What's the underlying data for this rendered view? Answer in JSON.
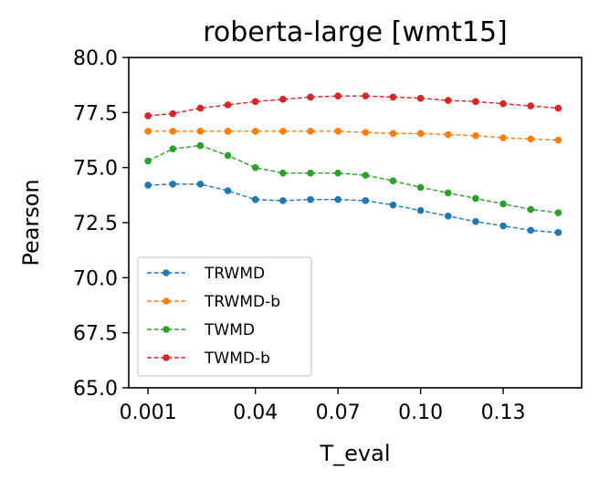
{
  "chart_data": {
    "type": "line",
    "title": "roberta-large [wmt15]",
    "xlabel": "T_eval",
    "ylabel": "Pearson",
    "xlim": [
      -0.006,
      0.1585
    ],
    "ylim": [
      65.0,
      80.0
    ],
    "xticks": [
      0.001,
      0.04,
      0.07,
      0.1,
      0.13
    ],
    "xtick_labels": [
      "0.001",
      "0.04",
      "0.07",
      "0.10",
      "0.13"
    ],
    "yticks": [
      65.0,
      67.5,
      70.0,
      72.5,
      75.0,
      77.5,
      80.0
    ],
    "ytick_labels": [
      "65.0",
      "67.5",
      "70.0",
      "72.5",
      "75.0",
      "77.5",
      "80.0"
    ],
    "grid": false,
    "legend_position": "lower-left",
    "x": [
      0.001,
      0.01,
      0.02,
      0.03,
      0.04,
      0.05,
      0.06,
      0.07,
      0.08,
      0.09,
      0.1,
      0.11,
      0.12,
      0.13,
      0.14,
      0.15
    ],
    "series": [
      {
        "name": "TRWMD",
        "color": "#1f77b4",
        "values": [
          74.2,
          74.25,
          74.25,
          73.95,
          73.55,
          73.5,
          73.55,
          73.55,
          73.5,
          73.3,
          73.05,
          72.8,
          72.55,
          72.35,
          72.15,
          72.05
        ]
      },
      {
        "name": "TRWMD-b",
        "color": "#ff7f0e",
        "values": [
          76.65,
          76.65,
          76.65,
          76.65,
          76.65,
          76.65,
          76.65,
          76.65,
          76.6,
          76.55,
          76.55,
          76.5,
          76.45,
          76.35,
          76.3,
          76.25
        ]
      },
      {
        "name": "TWMD",
        "color": "#2ca02c",
        "values": [
          75.3,
          75.85,
          76.0,
          75.55,
          75.0,
          74.75,
          74.75,
          74.75,
          74.65,
          74.4,
          74.1,
          73.85,
          73.6,
          73.35,
          73.1,
          72.95
        ]
      },
      {
        "name": "TWMD-b",
        "color": "#d62728",
        "values": [
          77.35,
          77.45,
          77.7,
          77.85,
          78.0,
          78.1,
          78.2,
          78.25,
          78.25,
          78.2,
          78.15,
          78.05,
          78.0,
          77.9,
          77.8,
          77.7
        ]
      }
    ]
  }
}
